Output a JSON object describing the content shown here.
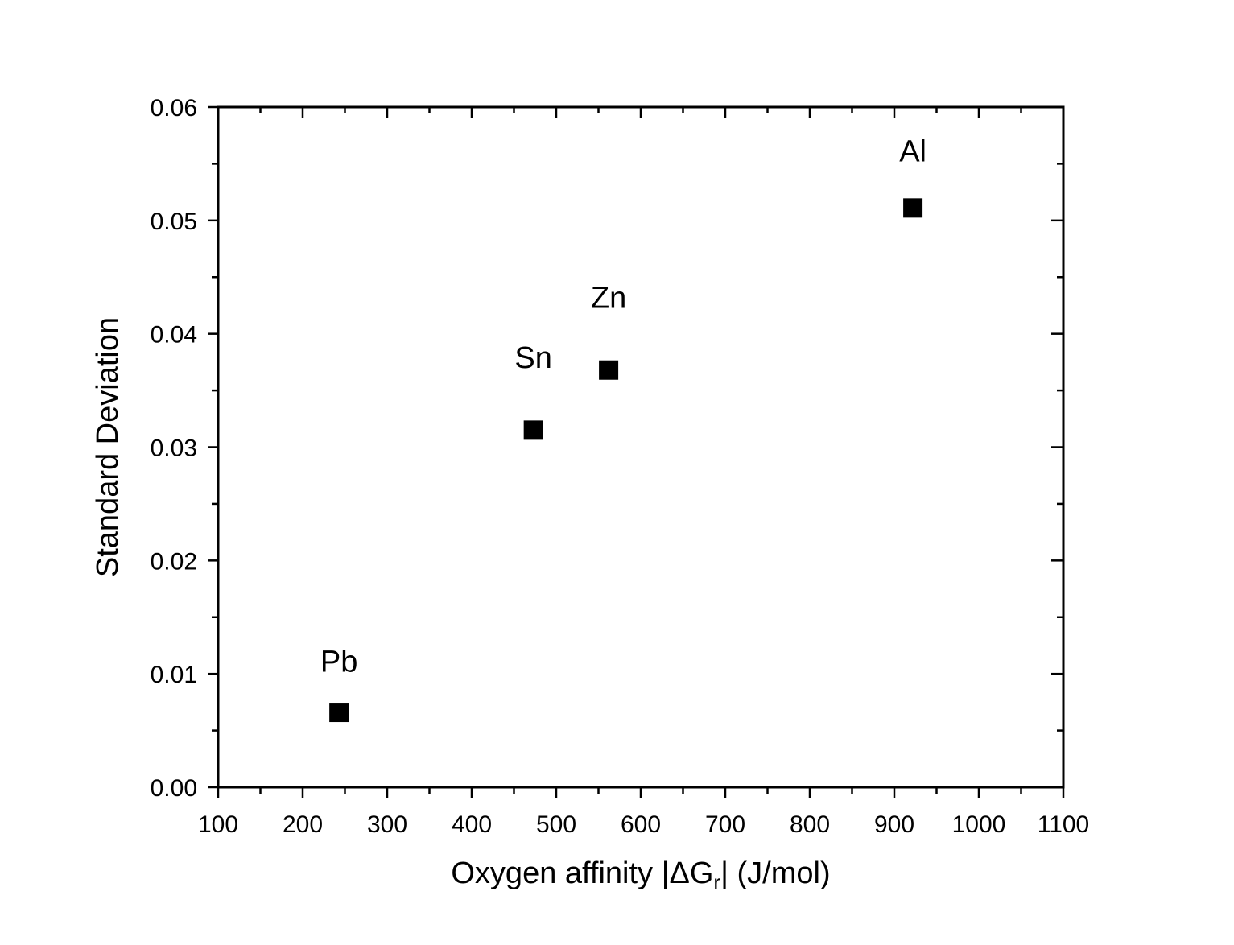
{
  "chart_data": {
    "type": "scatter",
    "title": "",
    "xlabel": {
      "prefix": "Oxygen affinity ",
      "bar_left": "|",
      "delta": "Δ",
      "symbol": "G",
      "subscript": "r",
      "bar_right": "|",
      "suffix": " (J/mol)"
    },
    "ylabel": "Standard Deviation",
    "xlim": [
      100,
      1100
    ],
    "ylim": [
      0,
      0.06
    ],
    "x_ticks": [
      100,
      200,
      300,
      400,
      500,
      600,
      700,
      800,
      900,
      1000,
      1100
    ],
    "x_tick_labels": [
      "100",
      "200",
      "300",
      "400",
      "500",
      "600",
      "700",
      "800",
      "900",
      "1000",
      "1100"
    ],
    "y_ticks": [
      0,
      0.01,
      0.02,
      0.03,
      0.04,
      0.05,
      0.06
    ],
    "y_tick_labels": [
      "0.00",
      "0.01",
      "0.02",
      "0.03",
      "0.04",
      "0.05",
      "0.06"
    ],
    "grid": false,
    "marker": "square",
    "marker_color": "#000000",
    "points": [
      {
        "label": "Pb",
        "x": 243,
        "y": 0.0066,
        "label_dy": 0.0036
      },
      {
        "label": "Sn",
        "x": 473,
        "y": 0.0315,
        "label_dy": 0.0055
      },
      {
        "label": "Zn",
        "x": 562,
        "y": 0.0368,
        "label_dy": 0.0055
      },
      {
        "label": "Al",
        "x": 922,
        "y": 0.0511,
        "label_dy": 0.0041
      }
    ]
  }
}
